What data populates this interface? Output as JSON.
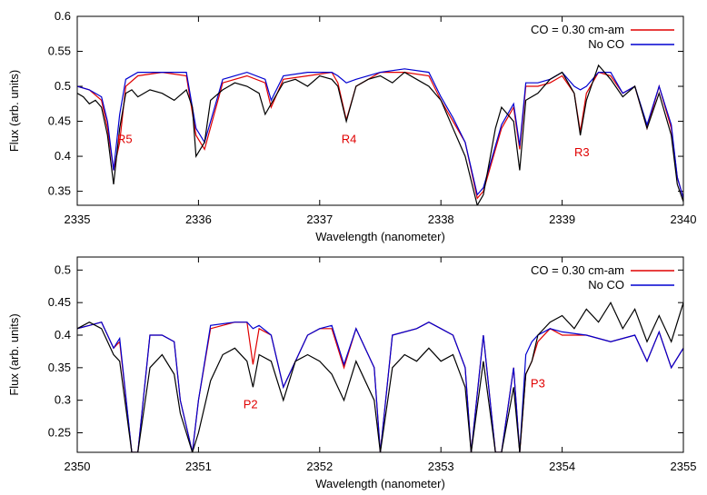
{
  "chart_data": [
    {
      "type": "line",
      "xlabel": "Wavelength (nanometer)",
      "ylabel": "Flux (arb. units)",
      "xlim": [
        2335,
        2340
      ],
      "ylim": [
        0.33,
        0.6
      ],
      "xticks": [
        2335,
        2336,
        2337,
        2338,
        2339,
        2340
      ],
      "yticks": [
        0.35,
        0.4,
        0.45,
        0.5,
        0.55,
        0.6
      ],
      "ytick_labels": [
        "0.35",
        "0.4",
        "0.45",
        "0.5",
        "0.55",
        "0.6"
      ],
      "grid": false,
      "legend_position": "top-right",
      "legend": [
        "CO = 0.30 cm-am",
        "No CO"
      ],
      "series": [
        {
          "name": "CO = 0.30 cm-am",
          "color": "#e00000",
          "x": [
            2335.0,
            2335.1,
            2335.2,
            2335.25,
            2335.3,
            2335.35,
            2335.4,
            2335.5,
            2335.7,
            2335.9,
            2335.98,
            2336.05,
            2336.2,
            2336.4,
            2336.55,
            2336.6,
            2336.7,
            2336.9,
            2337.1,
            2337.15,
            2337.22,
            2337.3,
            2337.5,
            2337.7,
            2337.9,
            2338.0,
            2338.1,
            2338.2,
            2338.3,
            2338.35,
            2338.5,
            2338.6,
            2338.65,
            2338.7,
            2338.8,
            2338.9,
            2339.0,
            2339.1,
            2339.15,
            2339.2,
            2339.3,
            2339.4,
            2339.5,
            2339.6,
            2339.7,
            2339.8,
            2339.9,
            2339.95,
            2340.0
          ],
          "y": [
            0.5,
            0.495,
            0.48,
            0.44,
            0.38,
            0.42,
            0.5,
            0.515,
            0.52,
            0.515,
            0.43,
            0.41,
            0.505,
            0.515,
            0.505,
            0.47,
            0.51,
            0.515,
            0.52,
            0.505,
            0.452,
            0.5,
            0.52,
            0.52,
            0.515,
            0.48,
            0.45,
            0.42,
            0.34,
            0.35,
            0.44,
            0.47,
            0.41,
            0.5,
            0.5,
            0.505,
            0.515,
            0.49,
            0.435,
            0.49,
            0.52,
            0.515,
            0.49,
            0.5,
            0.44,
            0.5,
            0.44,
            0.37,
            0.34
          ]
        },
        {
          "name": "No CO",
          "color": "#0000d0",
          "x": [
            2335.0,
            2335.1,
            2335.2,
            2335.25,
            2335.3,
            2335.35,
            2335.4,
            2335.5,
            2335.7,
            2335.9,
            2335.98,
            2336.05,
            2336.2,
            2336.4,
            2336.55,
            2336.6,
            2336.7,
            2336.9,
            2337.1,
            2337.15,
            2337.22,
            2337.3,
            2337.5,
            2337.7,
            2337.9,
            2338.0,
            2338.1,
            2338.2,
            2338.3,
            2338.35,
            2338.5,
            2338.6,
            2338.65,
            2338.7,
            2338.8,
            2338.9,
            2339.0,
            2339.1,
            2339.15,
            2339.2,
            2339.3,
            2339.4,
            2339.5,
            2339.6,
            2339.7,
            2339.8,
            2339.9,
            2339.95,
            2340.0
          ],
          "y": [
            0.5,
            0.495,
            0.485,
            0.45,
            0.38,
            0.46,
            0.51,
            0.52,
            0.52,
            0.52,
            0.44,
            0.42,
            0.51,
            0.52,
            0.51,
            0.48,
            0.515,
            0.52,
            0.52,
            0.515,
            0.505,
            0.51,
            0.52,
            0.525,
            0.52,
            0.485,
            0.455,
            0.42,
            0.345,
            0.355,
            0.445,
            0.475,
            0.415,
            0.505,
            0.505,
            0.51,
            0.52,
            0.5,
            0.495,
            0.5,
            0.52,
            0.52,
            0.49,
            0.5,
            0.445,
            0.5,
            0.445,
            0.37,
            0.34
          ]
        },
        {
          "name": "",
          "color": "#000000",
          "x": [
            2335.0,
            2335.05,
            2335.1,
            2335.15,
            2335.2,
            2335.25,
            2335.3,
            2335.35,
            2335.4,
            2335.45,
            2335.5,
            2335.6,
            2335.7,
            2335.8,
            2335.9,
            2335.95,
            2335.98,
            2336.05,
            2336.1,
            2336.2,
            2336.3,
            2336.4,
            2336.5,
            2336.55,
            2336.6,
            2336.7,
            2336.8,
            2336.9,
            2337.0,
            2337.1,
            2337.15,
            2337.22,
            2337.3,
            2337.4,
            2337.5,
            2337.6,
            2337.7,
            2337.8,
            2337.9,
            2338.0,
            2338.1,
            2338.2,
            2338.3,
            2338.35,
            2338.45,
            2338.5,
            2338.6,
            2338.65,
            2338.7,
            2338.8,
            2338.9,
            2339.0,
            2339.1,
            2339.15,
            2339.2,
            2339.3,
            2339.4,
            2339.5,
            2339.6,
            2339.7,
            2339.8,
            2339.9,
            2339.95,
            2340.0
          ],
          "y": [
            0.49,
            0.485,
            0.475,
            0.48,
            0.47,
            0.43,
            0.36,
            0.44,
            0.49,
            0.495,
            0.485,
            0.495,
            0.49,
            0.48,
            0.495,
            0.47,
            0.4,
            0.42,
            0.48,
            0.495,
            0.505,
            0.5,
            0.49,
            0.46,
            0.475,
            0.505,
            0.51,
            0.5,
            0.515,
            0.51,
            0.5,
            0.45,
            0.5,
            0.51,
            0.515,
            0.505,
            0.52,
            0.51,
            0.5,
            0.48,
            0.44,
            0.4,
            0.33,
            0.345,
            0.44,
            0.47,
            0.45,
            0.38,
            0.48,
            0.49,
            0.51,
            0.52,
            0.49,
            0.43,
            0.48,
            0.53,
            0.51,
            0.485,
            0.5,
            0.44,
            0.49,
            0.43,
            0.36,
            0.335
          ]
        }
      ],
      "annotations": [
        {
          "text": "R5",
          "x": 2335.33,
          "y": 0.419,
          "color": "#e00000"
        },
        {
          "text": "R4",
          "x": 2337.18,
          "y": 0.419,
          "color": "#e00000"
        },
        {
          "text": "R3",
          "x": 2339.1,
          "y": 0.4,
          "color": "#e00000"
        }
      ]
    },
    {
      "type": "line",
      "xlabel": "Wavelength (nanometer)",
      "ylabel": "Flux (arb. units)",
      "xlim": [
        2350,
        2355
      ],
      "ylim": [
        0.22,
        0.52
      ],
      "xticks": [
        2350,
        2351,
        2352,
        2353,
        2354,
        2355
      ],
      "yticks": [
        0.25,
        0.3,
        0.35,
        0.4,
        0.45,
        0.5
      ],
      "ytick_labels": [
        "0.25",
        "0.3",
        "0.35",
        "0.4",
        "0.45",
        "0.5"
      ],
      "grid": false,
      "legend_position": "top-right",
      "legend": [
        "CO = 0.30 cm-am",
        "No CO"
      ],
      "series": [
        {
          "name": "CO = 0.30 cm-am",
          "color": "#e00000",
          "x": [
            2350.0,
            2350.1,
            2350.2,
            2350.3,
            2350.35,
            2350.45,
            2350.5,
            2350.6,
            2350.7,
            2350.8,
            2350.85,
            2350.95,
            2351.0,
            2351.1,
            2351.3,
            2351.4,
            2351.45,
            2351.5,
            2351.6,
            2351.7,
            2351.9,
            2352.0,
            2352.1,
            2352.2,
            2352.3,
            2352.45,
            2352.5,
            2352.6,
            2352.8,
            2352.9,
            2353.0,
            2353.1,
            2353.2,
            2353.25,
            2353.35,
            2353.45,
            2353.5,
            2353.6,
            2353.65,
            2353.7,
            2353.75,
            2353.8,
            2353.9,
            2354.0,
            2354.2,
            2354.4,
            2354.6,
            2354.7,
            2354.8,
            2354.9,
            2355.0
          ],
          "y": [
            0.41,
            0.415,
            0.42,
            0.38,
            0.39,
            0.22,
            0.22,
            0.4,
            0.4,
            0.39,
            0.3,
            0.22,
            0.3,
            0.41,
            0.42,
            0.42,
            0.355,
            0.41,
            0.4,
            0.32,
            0.4,
            0.41,
            0.41,
            0.35,
            0.41,
            0.35,
            0.22,
            0.4,
            0.41,
            0.42,
            0.41,
            0.4,
            0.35,
            0.22,
            0.4,
            0.22,
            0.22,
            0.35,
            0.22,
            0.34,
            0.36,
            0.39,
            0.41,
            0.4,
            0.4,
            0.39,
            0.4,
            0.36,
            0.405,
            0.35,
            0.38
          ]
        },
        {
          "name": "No CO",
          "color": "#0000d0",
          "x": [
            2350.0,
            2350.1,
            2350.2,
            2350.3,
            2350.35,
            2350.45,
            2350.5,
            2350.6,
            2350.7,
            2350.8,
            2350.85,
            2350.95,
            2351.0,
            2351.1,
            2351.3,
            2351.4,
            2351.45,
            2351.5,
            2351.6,
            2351.7,
            2351.9,
            2352.0,
            2352.1,
            2352.2,
            2352.3,
            2352.45,
            2352.5,
            2352.6,
            2352.8,
            2352.9,
            2353.0,
            2353.1,
            2353.2,
            2353.25,
            2353.35,
            2353.45,
            2353.5,
            2353.6,
            2353.65,
            2353.7,
            2353.75,
            2353.8,
            2353.9,
            2354.0,
            2354.2,
            2354.4,
            2354.6,
            2354.7,
            2354.8,
            2354.9,
            2355.0
          ],
          "y": [
            0.41,
            0.415,
            0.42,
            0.38,
            0.395,
            0.22,
            0.22,
            0.4,
            0.4,
            0.39,
            0.3,
            0.22,
            0.3,
            0.415,
            0.42,
            0.42,
            0.41,
            0.415,
            0.4,
            0.32,
            0.4,
            0.41,
            0.415,
            0.355,
            0.41,
            0.35,
            0.22,
            0.4,
            0.41,
            0.42,
            0.41,
            0.4,
            0.35,
            0.22,
            0.4,
            0.22,
            0.22,
            0.35,
            0.22,
            0.37,
            0.39,
            0.4,
            0.41,
            0.405,
            0.4,
            0.39,
            0.4,
            0.36,
            0.405,
            0.35,
            0.38
          ]
        },
        {
          "name": "",
          "color": "#000000",
          "x": [
            2350.0,
            2350.1,
            2350.2,
            2350.3,
            2350.35,
            2350.45,
            2350.5,
            2350.6,
            2350.7,
            2350.8,
            2350.85,
            2350.95,
            2351.0,
            2351.1,
            2351.2,
            2351.3,
            2351.4,
            2351.45,
            2351.5,
            2351.6,
            2351.7,
            2351.8,
            2351.9,
            2352.0,
            2352.1,
            2352.2,
            2352.3,
            2352.45,
            2352.5,
            2352.6,
            2352.7,
            2352.8,
            2352.9,
            2353.0,
            2353.1,
            2353.2,
            2353.25,
            2353.35,
            2353.45,
            2353.5,
            2353.6,
            2353.65,
            2353.7,
            2353.75,
            2353.8,
            2353.9,
            2354.0,
            2354.1,
            2354.2,
            2354.3,
            2354.4,
            2354.5,
            2354.6,
            2354.7,
            2354.8,
            2354.9,
            2355.0
          ],
          "y": [
            0.41,
            0.42,
            0.41,
            0.37,
            0.36,
            0.22,
            0.22,
            0.35,
            0.37,
            0.34,
            0.28,
            0.22,
            0.25,
            0.33,
            0.37,
            0.38,
            0.36,
            0.32,
            0.37,
            0.36,
            0.3,
            0.36,
            0.37,
            0.36,
            0.34,
            0.3,
            0.36,
            0.3,
            0.22,
            0.35,
            0.37,
            0.36,
            0.38,
            0.36,
            0.37,
            0.32,
            0.22,
            0.36,
            0.22,
            0.22,
            0.32,
            0.22,
            0.34,
            0.36,
            0.4,
            0.42,
            0.43,
            0.41,
            0.44,
            0.42,
            0.45,
            0.41,
            0.44,
            0.39,
            0.43,
            0.39,
            0.45
          ]
        }
      ],
      "annotations": [
        {
          "text": "P2",
          "x": 2351.37,
          "y": 0.288,
          "color": "#e00000"
        },
        {
          "text": "P3",
          "x": 2353.74,
          "y": 0.32,
          "color": "#e00000"
        }
      ]
    }
  ]
}
